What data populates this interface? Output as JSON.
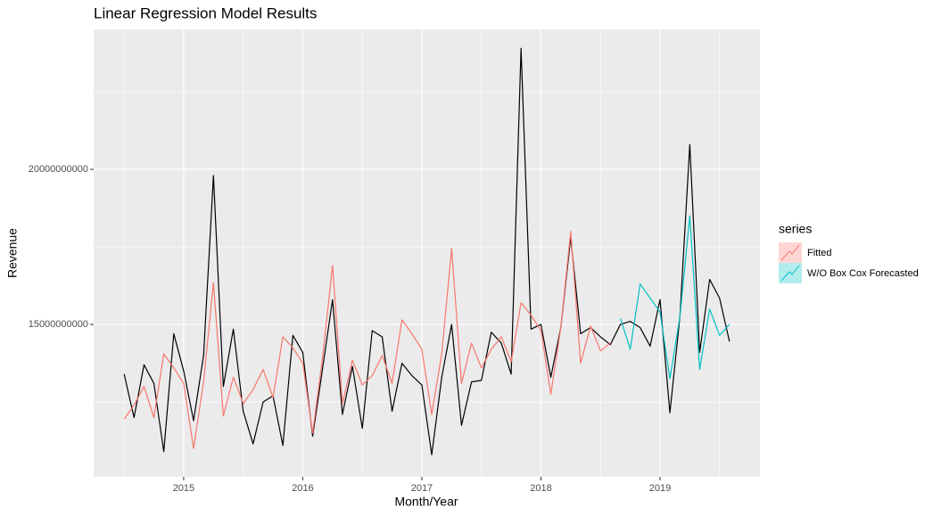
{
  "chart_data": {
    "type": "line",
    "title": "Linear Regression Model Results",
    "x_label": "Month/Year",
    "y_label": "Revenue",
    "legend_title": "series",
    "legend_position": "right",
    "grid": true,
    "x": [
      2014.5,
      2014.583,
      2014.667,
      2014.75,
      2014.833,
      2014.917,
      2015,
      2015.083,
      2015.167,
      2015.25,
      2015.333,
      2015.417,
      2015.5,
      2015.583,
      2015.667,
      2015.75,
      2015.833,
      2015.917,
      2016,
      2016.083,
      2016.167,
      2016.25,
      2016.333,
      2016.417,
      2016.5,
      2016.583,
      2016.667,
      2016.75,
      2016.833,
      2016.917,
      2017,
      2017.083,
      2017.167,
      2017.25,
      2017.333,
      2017.417,
      2017.5,
      2017.583,
      2017.667,
      2017.75,
      2017.833,
      2017.917,
      2018,
      2018.083,
      2018.167,
      2018.25,
      2018.333,
      2018.417,
      2018.5,
      2018.583,
      2018.667,
      2018.75,
      2018.833,
      2018.917,
      2019,
      2019.083,
      2019.167,
      2019.25,
      2019.333,
      2019.417,
      2019.5,
      2019.583
    ],
    "series": [
      {
        "color": "#000000",
        "values": [
          13400000000,
          12000000000,
          13700000000,
          13100000000,
          10900000000,
          14700000000,
          13500000000,
          11900000000,
          14000000000,
          19800000000,
          13000000000,
          14850000000,
          12200000000,
          11150000000,
          12500000000,
          12700000000,
          11100000000,
          14650000000,
          14100000000,
          11400000000,
          13600000000,
          15800000000,
          12100000000,
          13650000000,
          11650000000,
          14800000000,
          14600000000,
          12200000000,
          13750000000,
          13350000000,
          13050000000,
          10800000000,
          13300000000,
          15000000000,
          11750000000,
          13150000000,
          13200000000,
          14750000000,
          14400000000,
          13400000000,
          23900000000,
          14850000000,
          15000000000,
          13300000000,
          14900000000,
          17800000000,
          14700000000,
          14900000000,
          14600000000,
          14350000000,
          15000000000,
          15100000000,
          14900000000,
          14300000000,
          15800000000,
          12150000000,
          15250000000,
          20800000000,
          14100000000,
          16450000000,
          15850000000,
          14450000000
        ]
      },
      {
        "name": "Fitted",
        "color": "#f8766d",
        "values": [
          11950000000,
          12400000000,
          13000000000,
          12000000000,
          14050000000,
          13600000000,
          13100000000,
          11000000000,
          13150000000,
          16350000000,
          12050000000,
          13300000000,
          12450000000,
          12900000000,
          13550000000,
          12650000000,
          14600000000,
          14250000000,
          13750000000,
          11500000000,
          13950000000,
          16900000000,
          12450000000,
          13850000000,
          13050000000,
          13350000000,
          14000000000,
          13100000000,
          15150000000,
          14700000000,
          14200000000,
          12100000000,
          14050000000,
          17450000000,
          13100000000,
          14400000000,
          13600000000,
          14200000000,
          14600000000,
          13800000000,
          15700000000,
          15300000000,
          14800000000,
          12750000000,
          14900000000,
          18000000000,
          13750000000,
          14950000000,
          14150000000,
          14400000000,
          null,
          null,
          null,
          null,
          null,
          null,
          null,
          null,
          null,
          null,
          null,
          null
        ]
      },
      {
        "name": "W/O Box Cox Forecasted",
        "color": "#00bfc4",
        "values": [
          null,
          null,
          null,
          null,
          null,
          null,
          null,
          null,
          null,
          null,
          null,
          null,
          null,
          null,
          null,
          null,
          null,
          null,
          null,
          null,
          null,
          null,
          null,
          null,
          null,
          null,
          null,
          null,
          null,
          null,
          null,
          null,
          null,
          null,
          null,
          null,
          null,
          null,
          null,
          null,
          null,
          null,
          null,
          null,
          null,
          null,
          null,
          null,
          null,
          null,
          15200000000,
          14200000000,
          16300000000,
          15850000000,
          15400000000,
          13250000000,
          15250000000,
          18500000000,
          13550000000,
          15500000000,
          14650000000,
          15000000000
        ]
      }
    ],
    "xlim": [
      2014.244,
      2019.839
    ],
    "xticks": [
      2015,
      2016,
      2017,
      2018,
      2019
    ],
    "minor_xticks": [
      2014.5,
      2015.5,
      2016.5,
      2017.5,
      2018.5,
      2019.5
    ],
    "ylim": [
      10090000000,
      24510000000
    ],
    "yticks": [
      15000000000,
      20000000000
    ],
    "minor_yticks": [
      12500000000,
      17500000000,
      22500000000
    ]
  }
}
